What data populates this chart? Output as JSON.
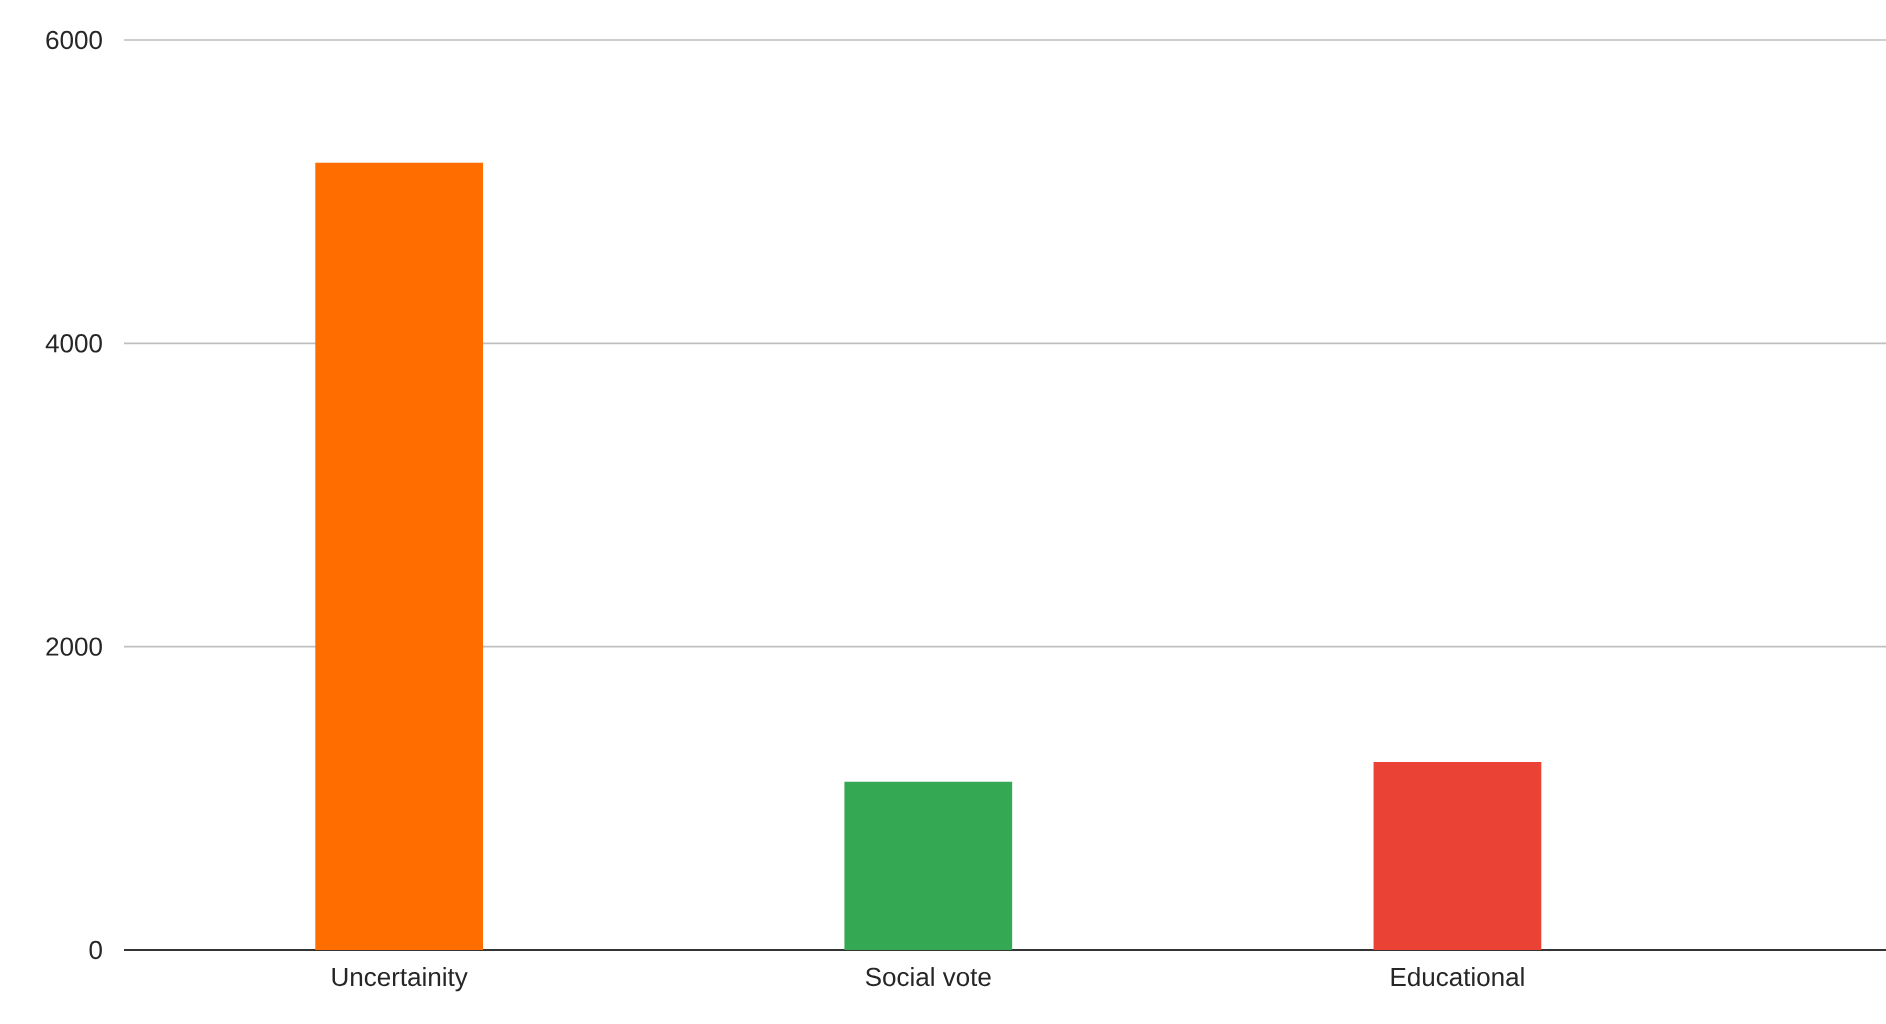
{
  "chart_data": {
    "type": "bar",
    "categories": [
      "Uncertainity",
      "Social vote",
      "Educational"
    ],
    "values": [
      5190,
      1110,
      1240
    ],
    "colors": [
      "#ff6d01",
      "#34a853",
      "#ea4335"
    ],
    "ylim": [
      0,
      6000
    ],
    "yticks": [
      0,
      2000,
      4000,
      6000
    ],
    "grid": "y"
  }
}
